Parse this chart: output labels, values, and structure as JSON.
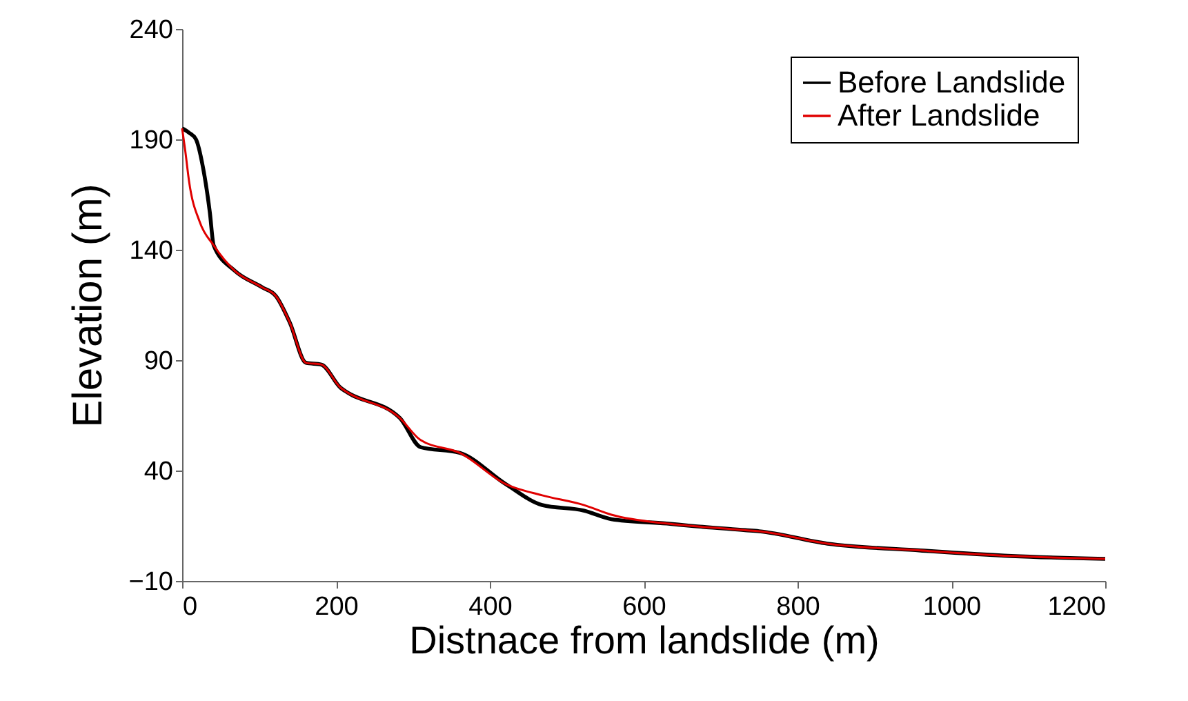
{
  "chart_data": {
    "type": "line",
    "xlabel": "Distnace from landslide (m)",
    "ylabel": "Elevation (m)",
    "xlim": [
      0,
      1200
    ],
    "xticks": [
      0,
      200,
      400,
      600,
      800,
      1000,
      1200
    ],
    "ylim": [
      -10,
      240
    ],
    "yticks": [
      -10,
      40,
      90,
      140,
      190,
      240
    ],
    "grid": false,
    "legend": "top right",
    "marker": "none",
    "line_style": "solid",
    "series": [
      {
        "name": "Before Landslide",
        "color": "#000000",
        "x": [
          0,
          9,
          18,
          27,
          36,
          41,
          68,
          104,
          122,
          140,
          161,
          181,
          206,
          212,
          283,
          310,
          361,
          421,
          468,
          522,
          558,
          630,
          660,
          732,
          750,
          839,
          960,
          1078,
          1200
        ],
        "values": [
          195,
          193,
          190,
          177.5,
          157,
          142,
          130.6,
          123,
          119,
          107,
          88.8,
          88,
          77.5,
          76,
          63.8,
          50.6,
          48,
          33.8,
          24.4,
          21.9,
          18,
          16,
          15,
          13,
          12.5,
          6.9,
          3.8,
          1.3,
          0
        ]
      },
      {
        "name": "After Landslide",
        "color": "#e00000",
        "x": [
          0,
          4,
          9,
          23,
          41,
          68,
          104,
          122,
          140,
          161,
          181,
          206,
          212,
          283,
          310,
          361,
          421,
          468,
          522,
          558,
          630,
          660,
          732,
          750,
          839,
          960,
          1078,
          1200
        ],
        "values": [
          195,
          185,
          171,
          152.5,
          142,
          130.6,
          123,
          119,
          107,
          88.8,
          88,
          77.5,
          76,
          63.8,
          53.8,
          48,
          33.8,
          28.8,
          24.4,
          20,
          16,
          15,
          13,
          12.5,
          6.9,
          3.8,
          1.3,
          0
        ]
      }
    ]
  }
}
